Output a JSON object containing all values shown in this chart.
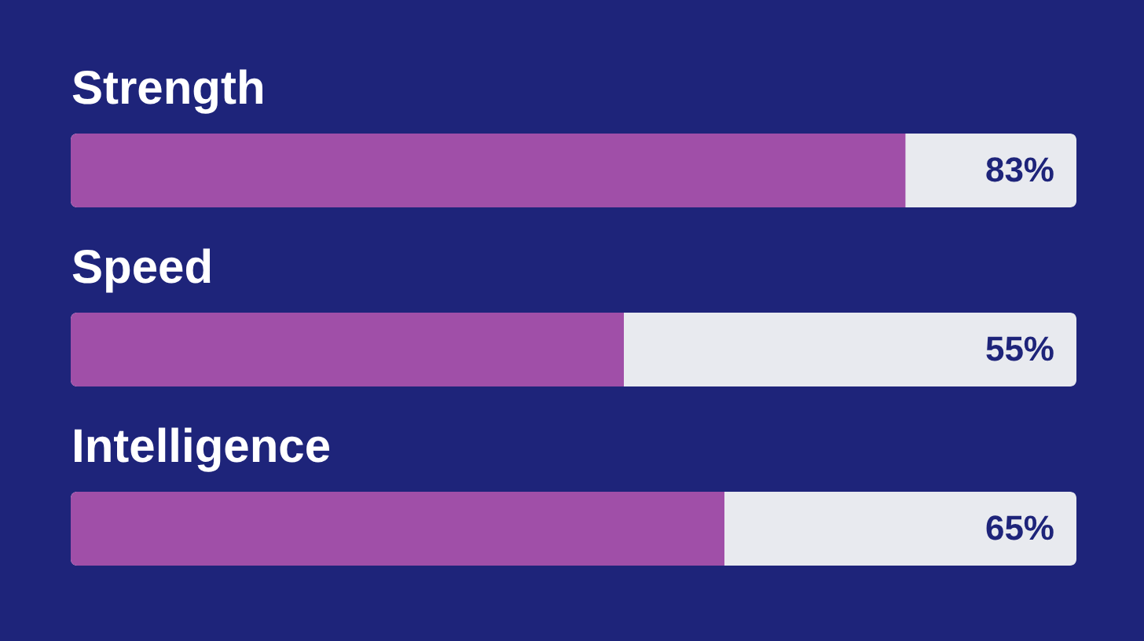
{
  "chart_data": {
    "type": "bar",
    "orientation": "horizontal",
    "categories": [
      "Strength",
      "Speed",
      "Intelligence"
    ],
    "values": [
      83,
      55,
      65
    ],
    "color": "#a04fa8",
    "xlim": [
      0,
      100
    ],
    "value_labels": [
      "83%",
      "55%",
      "65%"
    ]
  }
}
